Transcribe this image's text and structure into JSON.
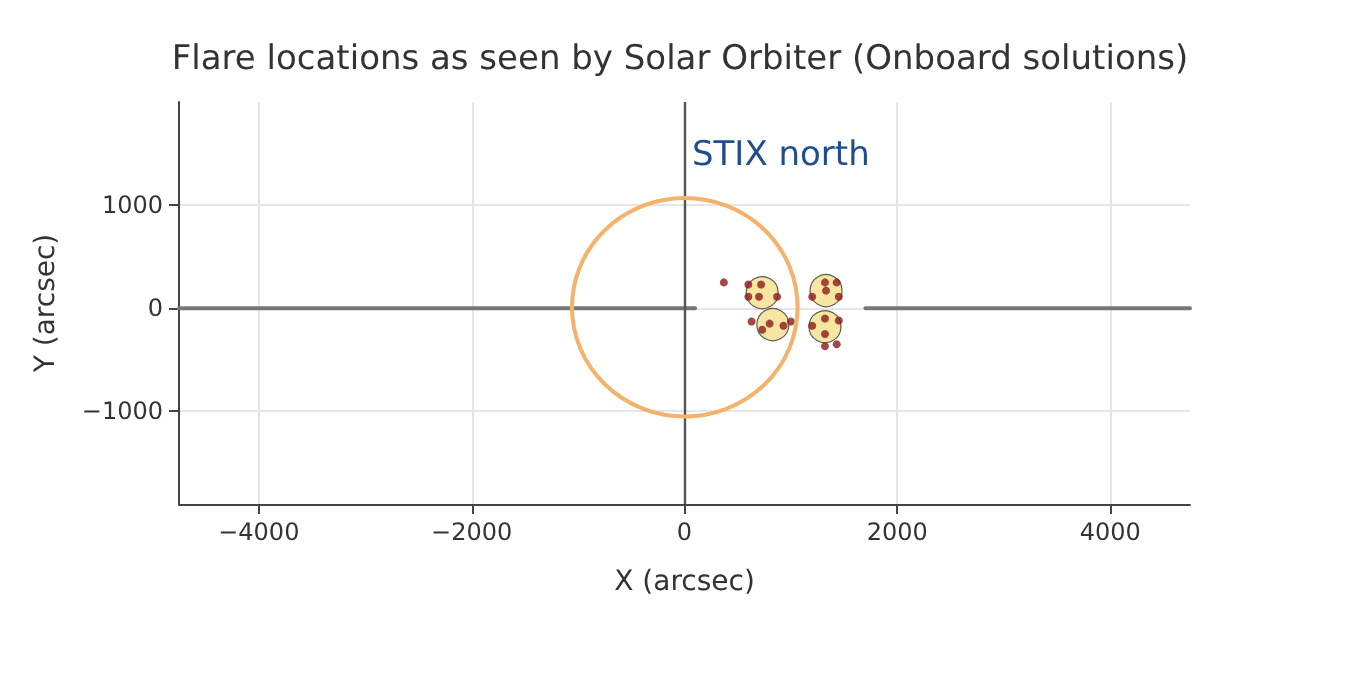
{
  "chart_data": {
    "type": "scatter",
    "title": "Flare locations as seen by Solar Orbiter (Onboard solutions)",
    "xlabel": "X (arcsec)",
    "ylabel": "Y (arcsec)",
    "xlim": [
      -4750,
      4750
    ],
    "ylim": [
      -1900,
      2000
    ],
    "xticks": [
      -4000,
      -2000,
      0,
      2000,
      4000
    ],
    "yticks": [
      -1000,
      0,
      1000
    ],
    "grid": true,
    "annotations": [
      "STIX north"
    ],
    "ref_lines": [
      {
        "axis": "x",
        "value": 0,
        "color": "#555555"
      }
    ],
    "series": [
      {
        "type": "line",
        "color": "#777777",
        "x": [
          -4750,
          100,
          1000,
          1700,
          4750
        ],
        "values": [
          0,
          0,
          null,
          0,
          0
        ]
      },
      {
        "type": "scatter",
        "color": "#f5e08a",
        "x": [
          730,
          830,
          1320,
          1330
        ],
        "values": [
          150,
          -160,
          -180,
          170
        ]
      },
      {
        "marker": "circle",
        "color": "#8b1a1a",
        "x": [
          370,
          600,
          720,
          600,
          700,
          870,
          1320,
          1430,
          1200,
          1330,
          1450,
          630,
          800,
          930,
          730,
          1000,
          1320,
          1320,
          1320,
          1430,
          1200,
          1450
        ],
        "values": [
          250,
          230,
          230,
          110,
          110,
          110,
          250,
          250,
          110,
          170,
          110,
          -130,
          -150,
          -170,
          -210,
          -130,
          -100,
          -250,
          -370,
          -350,
          -170,
          -120
        ]
      }
    ]
  }
}
